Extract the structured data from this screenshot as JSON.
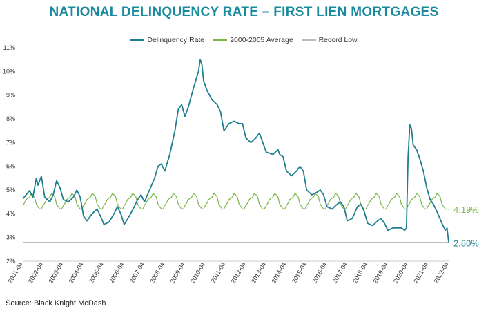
{
  "chart_data": {
    "type": "line",
    "title": "NATIONAL DELINQUENCY RATE – FIRST LIEN MORTGAGES",
    "source": "Source: Black Knight McDash",
    "ylim": [
      0.02,
      0.11
    ],
    "y_ticks": [
      "2%",
      "3%",
      "4%",
      "5%",
      "6%",
      "7%",
      "8%",
      "9%",
      "10%",
      "11%"
    ],
    "x_ticks": [
      "2001-04",
      "2002-04",
      "2003-04",
      "2004-04",
      "2005-04",
      "2006-04",
      "2007-04",
      "2008-04",
      "2009-04",
      "2010-04",
      "2011-04",
      "2012-04",
      "2013-04",
      "2014-04",
      "2015-04",
      "2016-04",
      "2017-04",
      "2018-04",
      "2019-04",
      "2020-04",
      "2021-04",
      "2022-04"
    ],
    "grid": false,
    "legend_position": "top",
    "series": [
      {
        "name": "Delinquency Rate",
        "color": "#1f7f8f",
        "points": [
          [
            "2001-04",
            0.0463
          ],
          [
            "2001-08",
            0.0497
          ],
          [
            "2001-10",
            0.047
          ],
          [
            "2001-12",
            0.055
          ],
          [
            "2002-01",
            0.052
          ],
          [
            "2002-03",
            0.0558
          ],
          [
            "2002-05",
            0.047
          ],
          [
            "2002-08",
            0.045
          ],
          [
            "2002-10",
            0.048
          ],
          [
            "2002-12",
            0.054
          ],
          [
            "2003-02",
            0.051
          ],
          [
            "2003-04",
            0.046
          ],
          [
            "2003-07",
            0.045
          ],
          [
            "2003-10",
            0.047
          ],
          [
            "2003-12",
            0.05
          ],
          [
            "2004-02",
            0.047
          ],
          [
            "2004-04",
            0.039
          ],
          [
            "2004-06",
            0.037
          ],
          [
            "2004-09",
            0.04
          ],
          [
            "2004-12",
            0.042
          ],
          [
            "2005-02",
            0.039
          ],
          [
            "2005-04",
            0.0355
          ],
          [
            "2005-07",
            0.0365
          ],
          [
            "2005-10",
            0.04
          ],
          [
            "2005-12",
            0.043
          ],
          [
            "2006-02",
            0.04
          ],
          [
            "2006-04",
            0.0355
          ],
          [
            "2006-07",
            0.039
          ],
          [
            "2006-10",
            0.043
          ],
          [
            "2006-12",
            0.046
          ],
          [
            "2007-02",
            0.048
          ],
          [
            "2007-04",
            0.045
          ],
          [
            "2007-07",
            0.05
          ],
          [
            "2007-10",
            0.055
          ],
          [
            "2007-12",
            0.06
          ],
          [
            "2008-02",
            0.061
          ],
          [
            "2008-04",
            0.058
          ],
          [
            "2008-07",
            0.065
          ],
          [
            "2008-10",
            0.075
          ],
          [
            "2008-12",
            0.084
          ],
          [
            "2009-02",
            0.086
          ],
          [
            "2009-04",
            0.081
          ],
          [
            "2009-06",
            0.085
          ],
          [
            "2009-09",
            0.093
          ],
          [
            "2009-12",
            0.1
          ],
          [
            "2010-01",
            0.105
          ],
          [
            "2010-02",
            0.103
          ],
          [
            "2010-03",
            0.096
          ],
          [
            "2010-05",
            0.092
          ],
          [
            "2010-08",
            0.088
          ],
          [
            "2010-11",
            0.086
          ],
          [
            "2011-01",
            0.083
          ],
          [
            "2011-03",
            0.075
          ],
          [
            "2011-06",
            0.078
          ],
          [
            "2011-09",
            0.079
          ],
          [
            "2011-12",
            0.078
          ],
          [
            "2012-02",
            0.078
          ],
          [
            "2012-04",
            0.072
          ],
          [
            "2012-07",
            0.07
          ],
          [
            "2012-10",
            0.072
          ],
          [
            "2012-12",
            0.074
          ],
          [
            "2013-02",
            0.07
          ],
          [
            "2013-04",
            0.066
          ],
          [
            "2013-08",
            0.065
          ],
          [
            "2013-11",
            0.067
          ],
          [
            "2013-12",
            0.065
          ],
          [
            "2014-02",
            0.064
          ],
          [
            "2014-04",
            0.058
          ],
          [
            "2014-07",
            0.056
          ],
          [
            "2014-10",
            0.058
          ],
          [
            "2014-12",
            0.06
          ],
          [
            "2015-02",
            0.058
          ],
          [
            "2015-04",
            0.05
          ],
          [
            "2015-07",
            0.048
          ],
          [
            "2015-10",
            0.049
          ],
          [
            "2015-12",
            0.05
          ],
          [
            "2016-02",
            0.048
          ],
          [
            "2016-04",
            0.043
          ],
          [
            "2016-07",
            0.042
          ],
          [
            "2016-10",
            0.044
          ],
          [
            "2016-12",
            0.045
          ],
          [
            "2017-02",
            0.043
          ],
          [
            "2017-04",
            0.037
          ],
          [
            "2017-07",
            0.038
          ],
          [
            "2017-10",
            0.043
          ],
          [
            "2017-12",
            0.044
          ],
          [
            "2018-02",
            0.041
          ],
          [
            "2018-04",
            0.036
          ],
          [
            "2018-07",
            0.035
          ],
          [
            "2018-10",
            0.037
          ],
          [
            "2018-12",
            0.038
          ],
          [
            "2019-02",
            0.036
          ],
          [
            "2019-04",
            0.033
          ],
          [
            "2019-07",
            0.034
          ],
          [
            "2019-10",
            0.034
          ],
          [
            "2019-12",
            0.034
          ],
          [
            "2020-02",
            0.033
          ],
          [
            "2020-03",
            0.034
          ],
          [
            "2020-04",
            0.064
          ],
          [
            "2020-05",
            0.0775
          ],
          [
            "2020-06",
            0.076
          ],
          [
            "2020-07",
            0.069
          ],
          [
            "2020-09",
            0.067
          ],
          [
            "2020-11",
            0.063
          ],
          [
            "2021-01",
            0.058
          ],
          [
            "2021-03",
            0.051
          ],
          [
            "2021-05",
            0.046
          ],
          [
            "2021-07",
            0.044
          ],
          [
            "2021-09",
            0.041
          ],
          [
            "2021-12",
            0.036
          ],
          [
            "2022-02",
            0.033
          ],
          [
            "2022-03",
            0.034
          ],
          [
            "2022-04",
            0.028
          ]
        ]
      },
      {
        "name": "2000-2005 Average",
        "color": "#7ab648",
        "seasonal_pattern": [
          0.043,
          0.042,
          0.042,
          0.0435,
          0.0445,
          0.046,
          0.0465,
          0.047,
          0.0485,
          0.048,
          0.047,
          0.044
        ],
        "end_value": 0.0419
      },
      {
        "name": "Record Low",
        "color": "#bbbbbb",
        "value": 0.028
      }
    ],
    "end_labels": [
      {
        "series": "2000-2005 Average",
        "text": "4.19%",
        "value": 0.0419,
        "color": "#7ab648"
      },
      {
        "series": "Delinquency Rate",
        "text": "2.80%",
        "value": 0.028,
        "color": "#1f7f8f"
      }
    ]
  }
}
